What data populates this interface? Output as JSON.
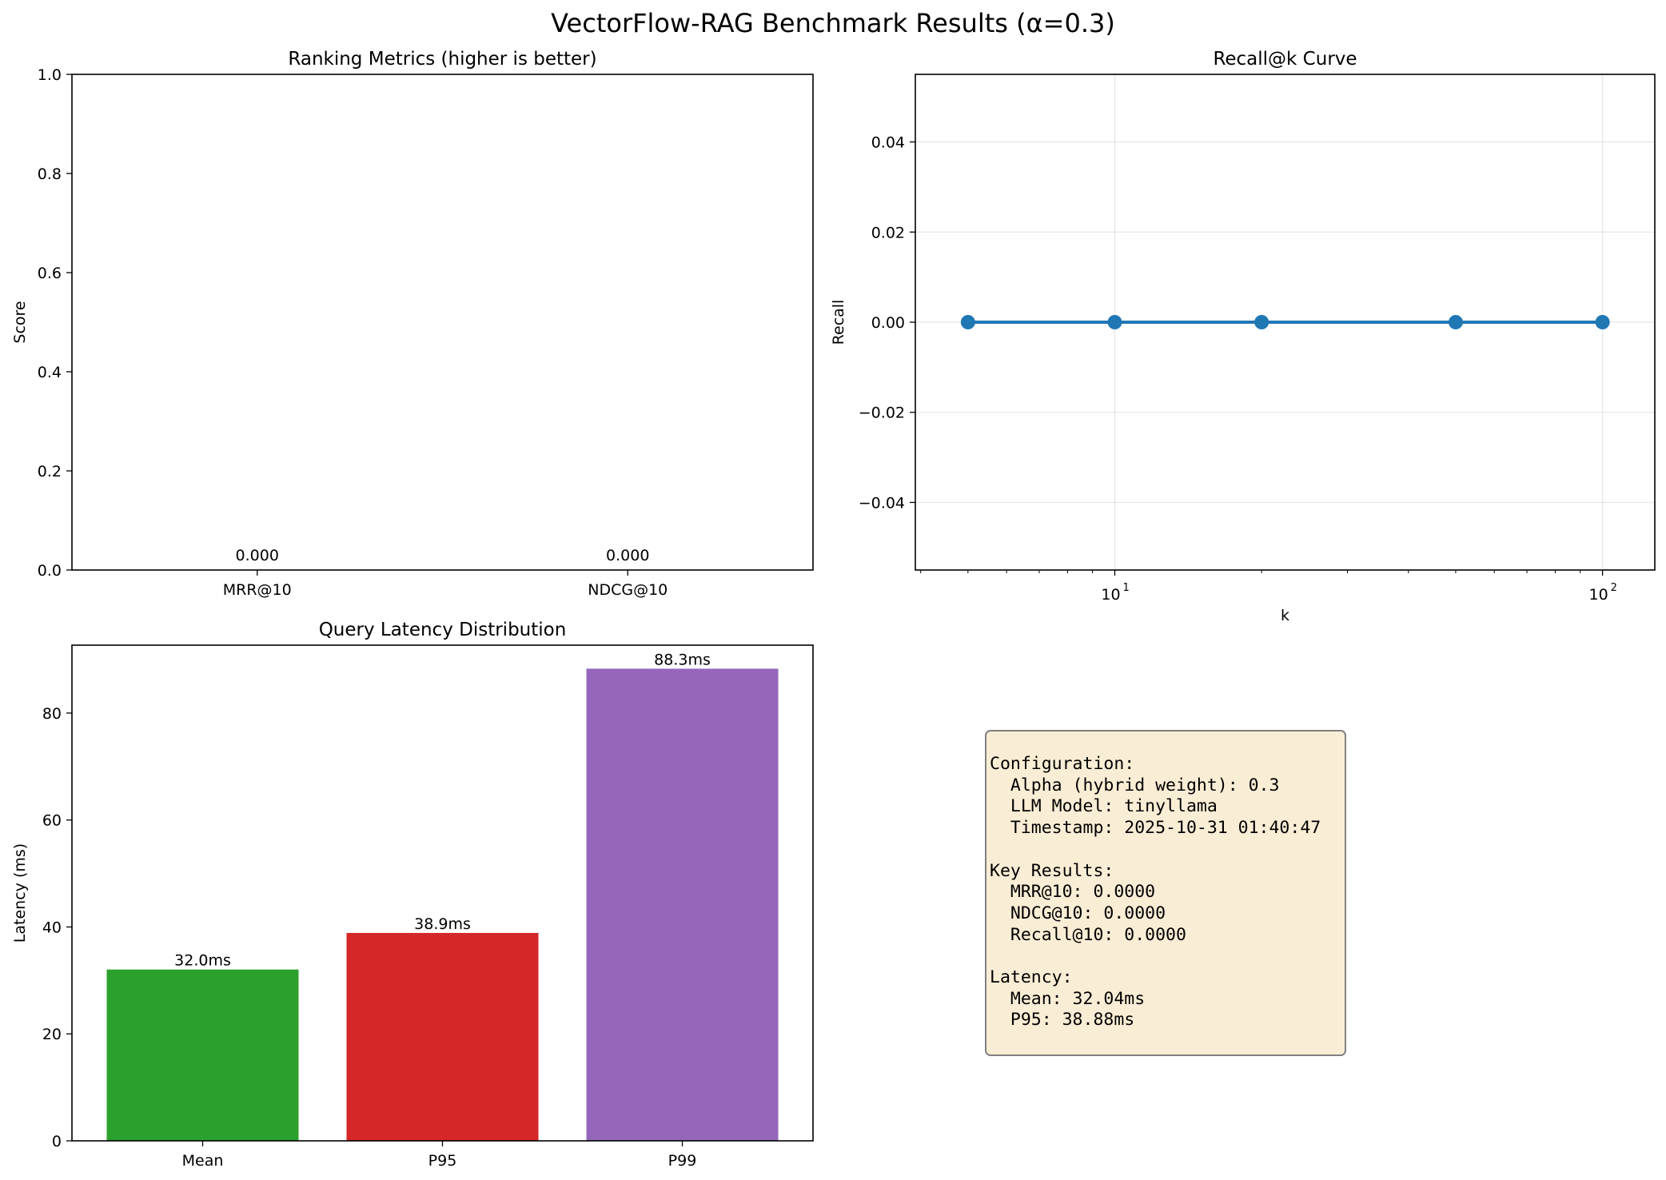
{
  "figure": {
    "title": "VectorFlow-RAG Benchmark Results (α=0.3)"
  },
  "chart_data": [
    {
      "id": "ranking",
      "type": "bar",
      "title": "Ranking Metrics (higher is better)",
      "xlabel": "",
      "ylabel": "Score",
      "categories": [
        "MRR@10",
        "NDCG@10"
      ],
      "values": [
        0.0,
        0.0
      ],
      "value_labels": [
        "0.000",
        "0.000"
      ],
      "colors": [
        "#1f77b4",
        "#ff7f0e"
      ],
      "ylim": [
        0,
        1.0
      ],
      "yticks": [
        0.0,
        0.2,
        0.4,
        0.6,
        0.8,
        1.0
      ],
      "ytick_labels": [
        "0.0",
        "0.2",
        "0.4",
        "0.6",
        "0.8",
        "1.0"
      ],
      "grid": false
    },
    {
      "id": "recall",
      "type": "line",
      "title": "Recall@k Curve",
      "xlabel": "k",
      "ylabel": "Recall",
      "xscale": "log",
      "x": [
        5,
        10,
        20,
        50,
        100
      ],
      "series": [
        {
          "values": [
            0.0,
            0.0,
            0.0,
            0.0,
            0.0
          ]
        }
      ],
      "color": "#1f77b4",
      "marker": "circle",
      "ylim": [
        -0.055,
        0.055
      ],
      "xlim": [
        3.9,
        128
      ],
      "yticks": [
        -0.04,
        -0.02,
        0.0,
        0.02,
        0.04
      ],
      "ytick_labels": [
        "−0.04",
        "−0.02",
        "0.00",
        "0.02",
        "0.04"
      ],
      "xticks_major": [
        10,
        100
      ],
      "xtick_labels": [
        "10",
        "10"
      ],
      "xtick_exponents": [
        "1",
        "2"
      ],
      "grid": true
    },
    {
      "id": "latency",
      "type": "bar",
      "title": "Query Latency Distribution",
      "xlabel": "",
      "ylabel": "Latency (ms)",
      "categories": [
        "Mean",
        "P95",
        "P99"
      ],
      "values": [
        32.04,
        38.88,
        88.3
      ],
      "value_labels": [
        "32.0ms",
        "38.9ms",
        "88.3ms"
      ],
      "colors": [
        "#2ca02c",
        "#d62728",
        "#9467bd"
      ],
      "ylim": [
        0,
        92.7
      ],
      "yticks": [
        0,
        20,
        40,
        60,
        80
      ],
      "ytick_labels": [
        "0",
        "20",
        "40",
        "60",
        "80"
      ],
      "grid": false
    }
  ],
  "info_box": {
    "lines": [
      "Configuration:",
      "  Alpha (hybrid weight): 0.3",
      "  LLM Model: tinyllama",
      "  Timestamp: 2025-10-31 01:40:47",
      "",
      "Key Results:",
      "  MRR@10: 0.0000",
      "  NDCG@10: 0.0000",
      "  Recall@10: 0.0000",
      "",
      "Latency:",
      "  Mean: 32.04ms",
      "  P95: 38.88ms"
    ]
  }
}
